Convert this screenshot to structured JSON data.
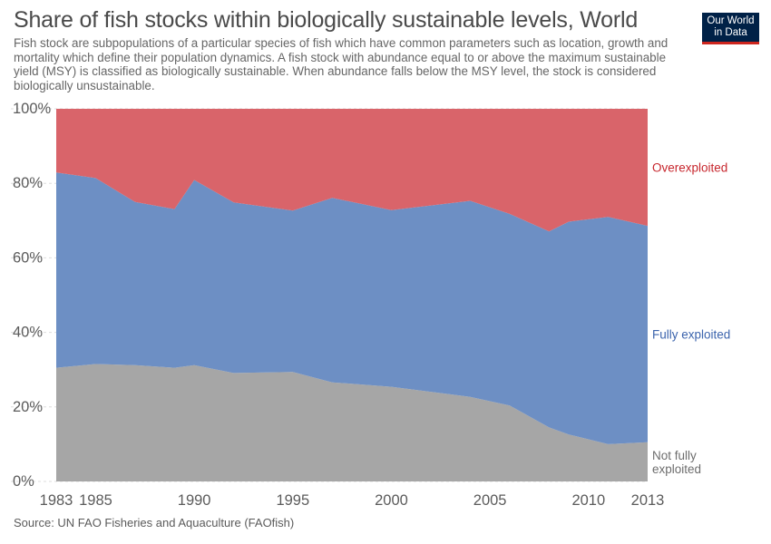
{
  "header": {
    "title": "Share of fish stocks within biologically sustainable levels, World",
    "subtitle": "Fish stock are subpopulations of a particular species of fish which have common parameters such as location, growth and mortality which define their population dynamics. A fish stock with abundance equal to or above the maximum sustainable yield (MSY) is classified as biologically sustainable. When abundance falls below the MSY level, the stock is considered biologically unsustainable."
  },
  "logo": {
    "line1": "Our World",
    "line2": "in Data",
    "bg_color": "#002147",
    "accent_color": "#ce261e"
  },
  "footer": {
    "source": "Source: UN FAO Fisheries and Aquaculture (FAOfish)"
  },
  "chart_data": {
    "type": "area",
    "stacked": true,
    "x": [
      1983,
      1985,
      1987,
      1989,
      1990,
      1992,
      1995,
      1997,
      2000,
      2004,
      2006,
      2008,
      2009,
      2011,
      2013
    ],
    "series": [
      {
        "name": "Not fully exploited",
        "label_lines": [
          "Not fully",
          "exploited"
        ],
        "color": "#a6a6a6",
        "label_color": "#6d6d6d",
        "values": [
          30.5,
          31.5,
          31.2,
          30.5,
          31.2,
          29.1,
          29.4,
          26.6,
          25.4,
          22.7,
          20.4,
          14.5,
          12.6,
          10,
          10.5
        ]
      },
      {
        "name": "Fully exploited",
        "label_lines": [
          "Fully exploited"
        ],
        "color": "#6d8fc4",
        "label_color": "#3c64ad",
        "values": [
          52.4,
          49.9,
          43.8,
          42.6,
          49.7,
          45.8,
          43.3,
          49.5,
          47.4,
          52.6,
          51.4,
          52.6,
          57.1,
          61,
          58.1
        ]
      },
      {
        "name": "Overexploited",
        "label_lines": [
          "Overexploited"
        ],
        "color": "#d9646a",
        "label_color": "#c7262d",
        "values": [
          17.1,
          18.6,
          25,
          26.9,
          19.1,
          25.1,
          27.3,
          23.9,
          27.2,
          24.7,
          28.2,
          32.9,
          30.3,
          29,
          31.4
        ]
      }
    ],
    "y_ticks": [
      "0%",
      "20%",
      "40%",
      "60%",
      "80%",
      "100%"
    ],
    "x_ticks": [
      1983,
      1985,
      1990,
      1995,
      2000,
      2005,
      2010,
      2013
    ],
    "ylim": [
      0,
      100
    ],
    "xlim": [
      1983,
      2013
    ],
    "grid": true,
    "legend": "right"
  }
}
